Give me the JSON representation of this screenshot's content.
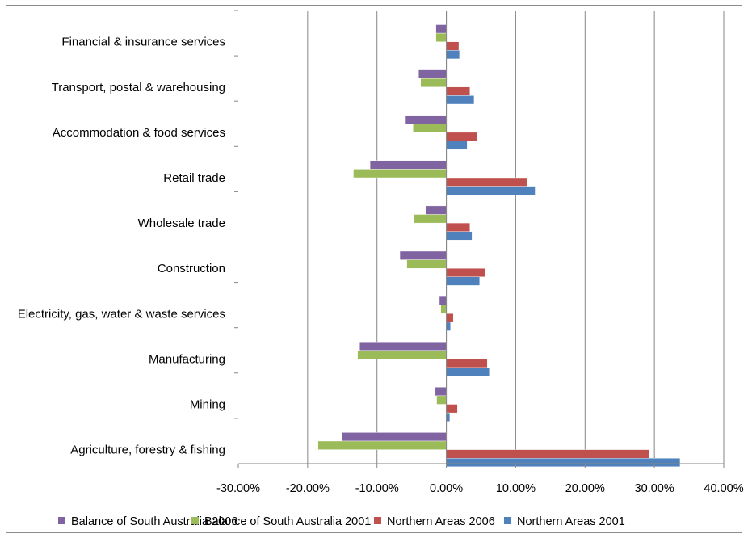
{
  "chart_data": {
    "type": "bar",
    "orientation": "horizontal",
    "categories": [
      "Financial & insurance services",
      "Transport, postal & warehousing",
      "Accommodation & food services",
      "Retail trade",
      "Wholesale trade",
      "Construction",
      "Electricity, gas, water & waste services",
      "Manufacturing",
      "Mining",
      "Agriculture, forestry & fishing"
    ],
    "series": [
      {
        "name": "Balance of South Australia 2006",
        "color": "#8064a2",
        "values": [
          -1.5,
          -4.0,
          -6.0,
          -11.0,
          -3.0,
          -6.7,
          -1.0,
          -12.5,
          -1.6,
          -15.0
        ]
      },
      {
        "name": "Balance of South Australia 2001",
        "color": "#9bbb59",
        "values": [
          -1.5,
          -3.7,
          -4.8,
          -13.4,
          -4.7,
          -5.7,
          -0.8,
          -12.8,
          -1.4,
          -18.5
        ]
      },
      {
        "name": "Northern Areas 2006",
        "color": "#c0504d",
        "values": [
          1.8,
          3.4,
          4.4,
          11.6,
          3.4,
          5.6,
          1.0,
          5.9,
          1.6,
          29.2
        ]
      },
      {
        "name": "Northern Areas 2001",
        "color": "#4f81bd",
        "values": [
          1.9,
          4.0,
          3.0,
          12.8,
          3.7,
          4.8,
          0.6,
          6.2,
          0.5,
          33.7
        ]
      }
    ],
    "xlim": [
      -30,
      40
    ],
    "xticks": [
      -30,
      -20,
      -10,
      0,
      10,
      20,
      30,
      40
    ],
    "xtick_labels": [
      "-30.00%",
      "-20.00%",
      "-10.00%",
      "0.00%",
      "10.00%",
      "20.00%",
      "30.00%",
      "40.00%"
    ],
    "grid": "vertical",
    "legend_position": "bottom",
    "title": "",
    "xlabel": "",
    "ylabel": ""
  }
}
